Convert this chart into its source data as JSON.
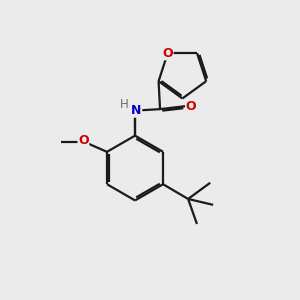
{
  "background_color": "#ebebeb",
  "bond_color": "#1a1a1a",
  "atom_colors": {
    "O": "#cc0000",
    "N": "#0000cc",
    "H": "#607070",
    "C": "#1a1a1a"
  },
  "figsize": [
    3.0,
    3.0
  ],
  "dpi": 100
}
